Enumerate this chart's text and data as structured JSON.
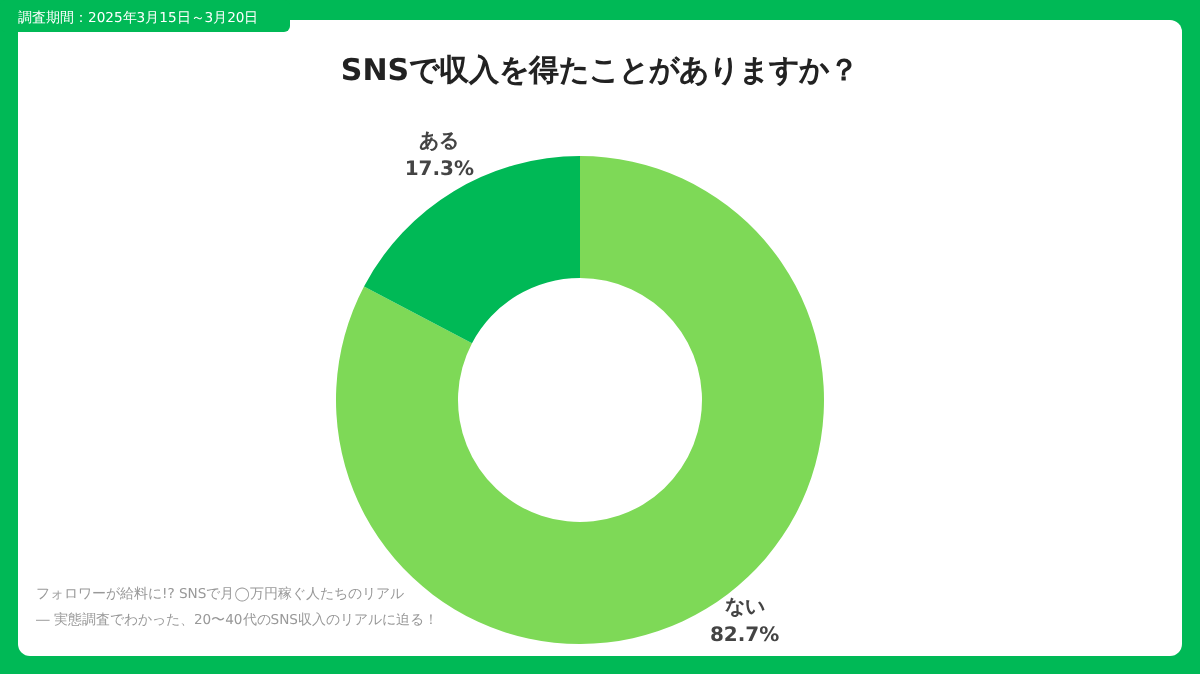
{
  "chart_data": {
    "type": "donut",
    "title": "SNSで収入を得たことがありますか？",
    "categories": [
      "ない",
      "ある"
    ],
    "values": [
      82.7,
      17.3
    ],
    "colors": [
      "#7ed957",
      "#00b956"
    ],
    "value_labels": [
      "82.7%",
      "17.3%"
    ],
    "annotations": [
      "調査期間：2025年3月15日～3月20日",
      "フォロワーが給料に!? SNSで月◯万円稼ぐ人たちのリアル",
      "― 実態調査でわかった、20〜40代のSNS収入のリアルに迫る！"
    ]
  }
}
